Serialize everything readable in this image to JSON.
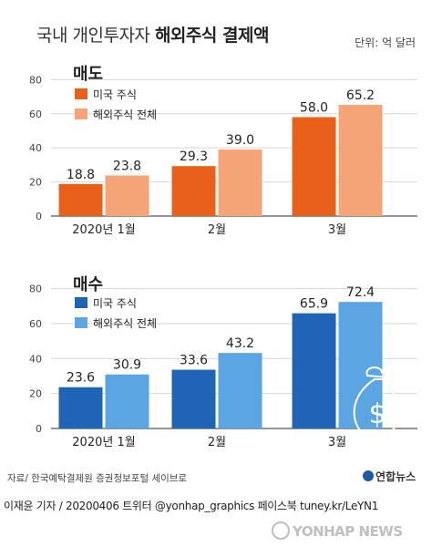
{
  "title": {
    "light": "국내 개인투자자",
    "bold": "해외주식 결제액"
  },
  "unit": "단위: 억 달러",
  "source": "자료/ 한국예탁결제원 증권정보포털 세이브로",
  "logo": "연합뉴스",
  "credit": "이재윤 기자 / 20200406   트위터 @yonhap_graphics  페이스북 tuney.kr/LeYN1",
  "watermark": "YONHAP NEWS",
  "chart_data": [
    {
      "type": "bar",
      "title": "매도",
      "categories": [
        "2020년 1월",
        "2월",
        "3월"
      ],
      "series": [
        {
          "name": "미국 주식",
          "values": [
            18.8,
            29.3,
            58.0
          ],
          "labels": [
            "18.8",
            "29.3",
            "58.0"
          ],
          "color": "#e8601a"
        },
        {
          "name": "해외주식 전체",
          "values": [
            23.8,
            39.0,
            65.2
          ],
          "labels": [
            "23.8",
            "39.0",
            "65.2"
          ],
          "color": "#f5a478"
        }
      ],
      "yticks": [
        0,
        20,
        40,
        60,
        80
      ],
      "ylim": [
        0,
        85
      ],
      "legend": "top-left",
      "grid": true
    },
    {
      "type": "bar",
      "title": "매수",
      "categories": [
        "2020년 1월",
        "2월",
        "3월"
      ],
      "series": [
        {
          "name": "미국 주식",
          "values": [
            23.6,
            33.6,
            65.9
          ],
          "labels": [
            "23.6",
            "33.6",
            "65.9"
          ],
          "color": "#1f64b5"
        },
        {
          "name": "해외주식 전체",
          "values": [
            30.9,
            43.2,
            72.4
          ],
          "labels": [
            "30.9",
            "43.2",
            "72.4"
          ],
          "color": "#5aa5e2"
        }
      ],
      "yticks": [
        0,
        20,
        40,
        60,
        80
      ],
      "ylim": [
        0,
        85
      ],
      "legend": "top-left",
      "grid": true
    }
  ]
}
